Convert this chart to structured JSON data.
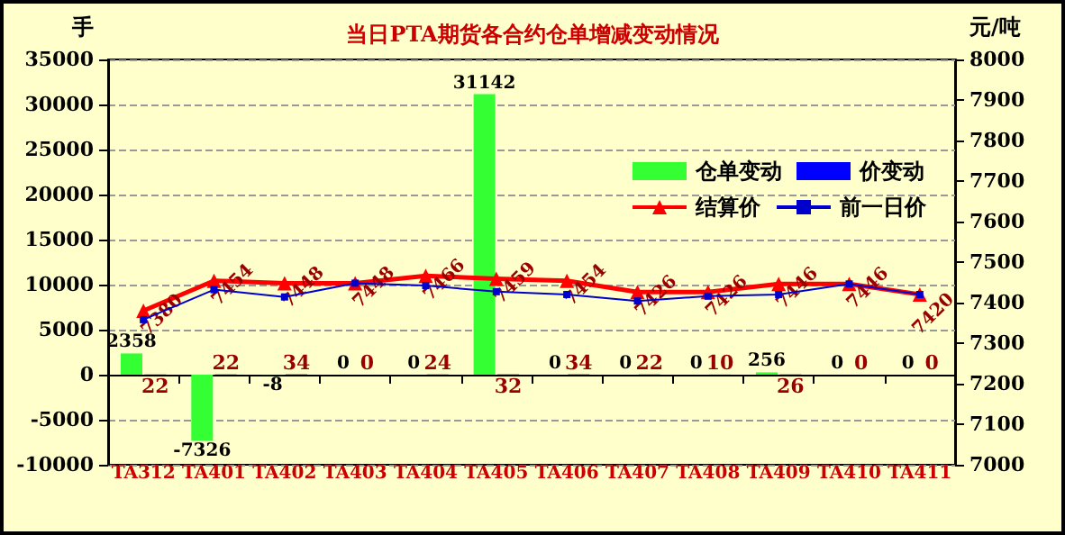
{
  "chart_data": {
    "type": "bar",
    "title": "当日PTA期货各合约仓单增减变动情况",
    "ylabel": "手",
    "y2label": "元/吨",
    "categories": [
      "TA312",
      "TA401",
      "TA402",
      "TA403",
      "TA404",
      "TA405",
      "TA406",
      "TA407",
      "TA408",
      "TA409",
      "TA410",
      "TA411"
    ],
    "series": [
      {
        "name": "仓单变动",
        "color": "#33ff33",
        "values": [
          2358,
          -7326,
          -8,
          0,
          0,
          31142,
          0,
          0,
          0,
          256,
          0,
          0
        ],
        "value_labels": [
          "2358",
          "-7326",
          "-8",
          "0",
          "0",
          "31142",
          "0",
          "0",
          "0",
          "256",
          "0",
          "0"
        ]
      },
      {
        "name": "价变动",
        "color": "#0000ff",
        "values": [
          22,
          22,
          34,
          0,
          24,
          32,
          34,
          22,
          10,
          26,
          0,
          0
        ],
        "value_labels": [
          "22",
          "22",
          "34",
          "0",
          "24",
          "32",
          "34",
          "22",
          "10",
          "26",
          "0",
          "0"
        ]
      },
      {
        "name": "结算价",
        "type": "line",
        "axis": "y2",
        "color": "#ff0000",
        "marker": "triangle",
        "values": [
          7380,
          7454,
          7448,
          7448,
          7466,
          7459,
          7454,
          7426,
          7426,
          7446,
          7446,
          7420
        ],
        "value_labels": [
          "7380",
          "7454",
          "7448",
          "7448",
          "7466",
          "7459",
          "7454",
          "7426",
          "7426",
          "7446",
          "7446",
          "7420"
        ]
      },
      {
        "name": "前一日价",
        "type": "line",
        "axis": "y2",
        "color": "#0000cc",
        "marker": "square",
        "values": [
          7358,
          7432,
          7414,
          7448,
          7442,
          7427,
          7420,
          7404,
          7416,
          7420,
          7446,
          7420
        ]
      }
    ],
    "ylim": [
      -10000,
      35000
    ],
    "yticks": [
      -10000,
      -5000,
      0,
      5000,
      10000,
      15000,
      20000,
      25000,
      30000,
      35000
    ],
    "y2lim": [
      7000,
      8000
    ],
    "y2ticks": [
      7000,
      7100,
      7200,
      7300,
      7400,
      7500,
      7600,
      7700,
      7800,
      7900,
      8000
    ],
    "grid": "y",
    "legend": "top right"
  }
}
